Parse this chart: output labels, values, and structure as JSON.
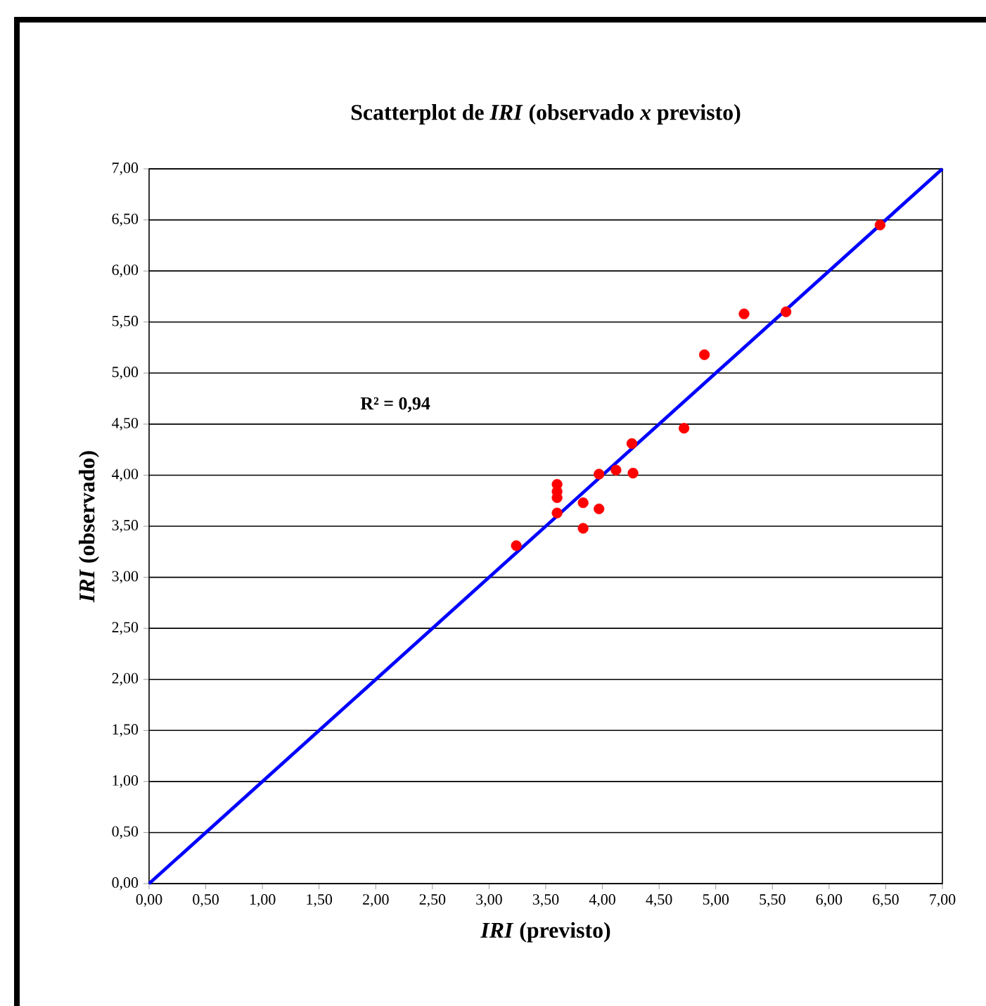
{
  "chart_data": {
    "type": "scatter",
    "title": "Scatterplot de *IRI* (observado *x* previsto)",
    "xlabel": "*IRI* (previsto)",
    "ylabel": "*IRI* (observado)",
    "annotations": [
      "R² = 0,94"
    ],
    "series": [
      {
        "color": "#ff0000",
        "marker": "circle",
        "x": [
          3.24,
          3.6,
          3.6,
          3.6,
          3.6,
          3.83,
          3.83,
          3.97,
          3.97,
          4.12,
          4.27,
          4.26,
          4.72,
          4.9,
          5.25,
          5.62,
          6.45
        ],
        "values": [
          3.31,
          3.91,
          3.84,
          3.78,
          3.63,
          3.73,
          3.48,
          3.67,
          4.01,
          4.05,
          4.02,
          4.31,
          4.46,
          5.18,
          5.58,
          5.6,
          6.45
        ]
      },
      {
        "type": "line",
        "color": "#0000ff",
        "marker": "none",
        "line_style": "solid",
        "x": [
          0,
          7
        ],
        "values": [
          0,
          7
        ]
      }
    ],
    "xlim": [
      0,
      7
    ],
    "ylim": [
      0,
      7
    ],
    "xticks": [
      {
        "value": 0,
        "label": "0,00"
      },
      {
        "value": 0.5,
        "label": "0,50"
      },
      {
        "value": 1,
        "label": "1,00"
      },
      {
        "value": 1.5,
        "label": "1,50"
      },
      {
        "value": 2,
        "label": "2,00"
      },
      {
        "value": 2.5,
        "label": "2,50"
      },
      {
        "value": 3,
        "label": "3,00"
      },
      {
        "value": 3.5,
        "label": "3,50"
      },
      {
        "value": 4,
        "label": "4,00"
      },
      {
        "value": 4.5,
        "label": "4,50"
      },
      {
        "value": 5,
        "label": "5,00"
      },
      {
        "value": 5.5,
        "label": "5,50"
      },
      {
        "value": 6,
        "label": "6,00"
      },
      {
        "value": 6.5,
        "label": "6,50"
      },
      {
        "value": 7,
        "label": "7,00"
      }
    ],
    "yticks": [
      {
        "value": 0,
        "label": "0,00"
      },
      {
        "value": 0.5,
        "label": "0,50"
      },
      {
        "value": 1,
        "label": "1,00"
      },
      {
        "value": 1.5,
        "label": "1,50"
      },
      {
        "value": 2,
        "label": "2,00"
      },
      {
        "value": 2.5,
        "label": "2,50"
      },
      {
        "value": 3,
        "label": "3,00"
      },
      {
        "value": 3.5,
        "label": "3,50"
      },
      {
        "value": 4,
        "label": "4,00"
      },
      {
        "value": 4.5,
        "label": "4,50"
      },
      {
        "value": 5,
        "label": "5,00"
      },
      {
        "value": 5.5,
        "label": "5,50"
      },
      {
        "value": 6,
        "label": "6,00"
      },
      {
        "value": 6.5,
        "label": "6,50"
      },
      {
        "value": 7,
        "label": "7,00"
      }
    ],
    "grid": "y",
    "legend": false
  }
}
